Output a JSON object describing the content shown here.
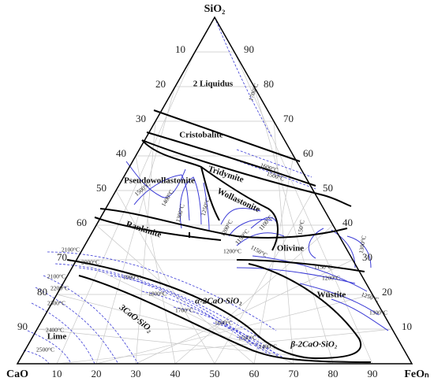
{
  "vertices": {
    "top": "SiO₂",
    "left": "CaO",
    "right": "FeOₙ"
  },
  "bottom_ticks": [
    10,
    20,
    30,
    40,
    50,
    60,
    70,
    80,
    90
  ],
  "left_ticks": [
    10,
    20,
    30,
    40,
    50,
    60,
    70,
    80,
    90
  ],
  "right_ticks": [
    10,
    20,
    30,
    40,
    50,
    60,
    70,
    80,
    90
  ],
  "phases": [
    "2 Liquidus",
    "Cristobalite",
    "Tridymite",
    "Pseudowollastonite",
    "Wollastonite",
    "Rankinite",
    "Olivine",
    "Wüstite",
    "α-2CaO·SiO₂",
    "3CaO·SiO₂",
    "Lime",
    "β-2CaO·SiO₂"
  ],
  "isotherms": [
    "1700°C",
    "1600°C",
    "1500°C",
    "1500°C",
    "1400°C",
    "1300°C",
    "1250°C",
    "1200°C",
    "1150°C",
    "1100°C",
    "1200°C",
    "1150°C",
    "1150°C",
    "1300°C",
    "1150°C",
    "1200°C",
    "1250°C",
    "1300°C",
    "2100°C",
    "2000°C",
    "1900°C",
    "1800°C",
    "1700°C",
    "1600°C",
    "1500°C",
    "1400°C",
    "2100°C",
    "2200°C",
    "2300°C",
    "2400°C",
    "2500°C"
  ]
}
